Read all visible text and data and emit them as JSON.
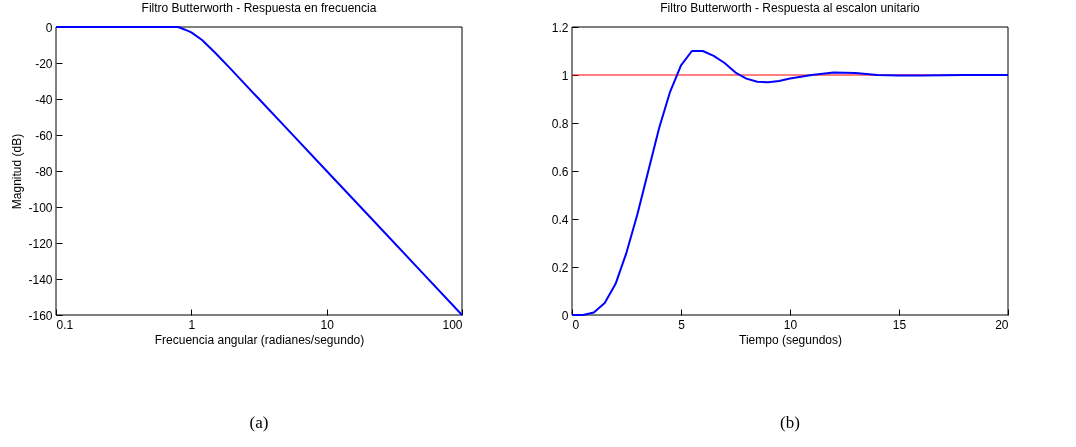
{
  "chart_data": [
    {
      "type": "line",
      "title": "Filtro Butterworth - Respuesta en frecuencia",
      "xlabel": "Frecuencia angular (radianes/segundo)",
      "ylabel": "Magnitud (dB)",
      "log": "x",
      "xlim": [
        0.1,
        100
      ],
      "xticks": [
        0.1,
        1,
        10,
        100
      ],
      "ylim": [
        -160,
        0
      ],
      "yticks": [
        -160,
        -140,
        -120,
        -100,
        -80,
        -60,
        -40,
        -20,
        0
      ],
      "x": [
        0.1,
        0.2,
        0.3,
        0.5,
        0.7,
        0.8,
        0.9,
        1,
        1.2,
        1.5,
        2,
        3,
        5,
        10,
        20,
        50,
        100
      ],
      "series": [
        {
          "color": "#0000ff",
          "values": [
            0,
            0,
            0,
            0,
            0,
            0,
            -1.5,
            -3,
            -7.2,
            -14.3,
            -24.1,
            -38.2,
            -55.9,
            -80,
            -104,
            -135.9,
            -160
          ]
        }
      ],
      "annotations": [
        "(a)"
      ]
    },
    {
      "type": "line",
      "title": "Filtro Butterworth - Respuesta al escalon unitario",
      "xlabel": "Tiempo (segundos)",
      "xlim": [
        0,
        20
      ],
      "xticks": [
        0,
        5,
        10,
        15,
        20
      ],
      "ylim": [
        0,
        1.2
      ],
      "yticks": [
        0,
        0.2,
        0.4,
        0.6,
        0.8,
        1,
        1.2
      ],
      "x": [
        0,
        0.5,
        1,
        1.5,
        2,
        2.5,
        3,
        3.5,
        4,
        4.5,
        5,
        5.5,
        6,
        6.5,
        7,
        7.5,
        8,
        8.5,
        9,
        9.5,
        10,
        11,
        12,
        13,
        14,
        15,
        16,
        17,
        18,
        19,
        20
      ],
      "series": [
        {
          "color": "#0000ff",
          "values": [
            0,
            0,
            0.01,
            0.05,
            0.13,
            0.26,
            0.42,
            0.6,
            0.78,
            0.93,
            1.04,
            1.1,
            1.1,
            1.08,
            1.05,
            1.01,
            0.985,
            0.972,
            0.97,
            0.975,
            0.985,
            1.0,
            1.01,
            1.008,
            1.0,
            0.998,
            0.998,
            0.999,
            1.0,
            1.0,
            1.0
          ]
        }
      ],
      "ref_lines": [
        {
          "axis": "y",
          "value": 1,
          "color": "#ff0000"
        }
      ],
      "annotations": [
        "(b)"
      ]
    }
  ]
}
